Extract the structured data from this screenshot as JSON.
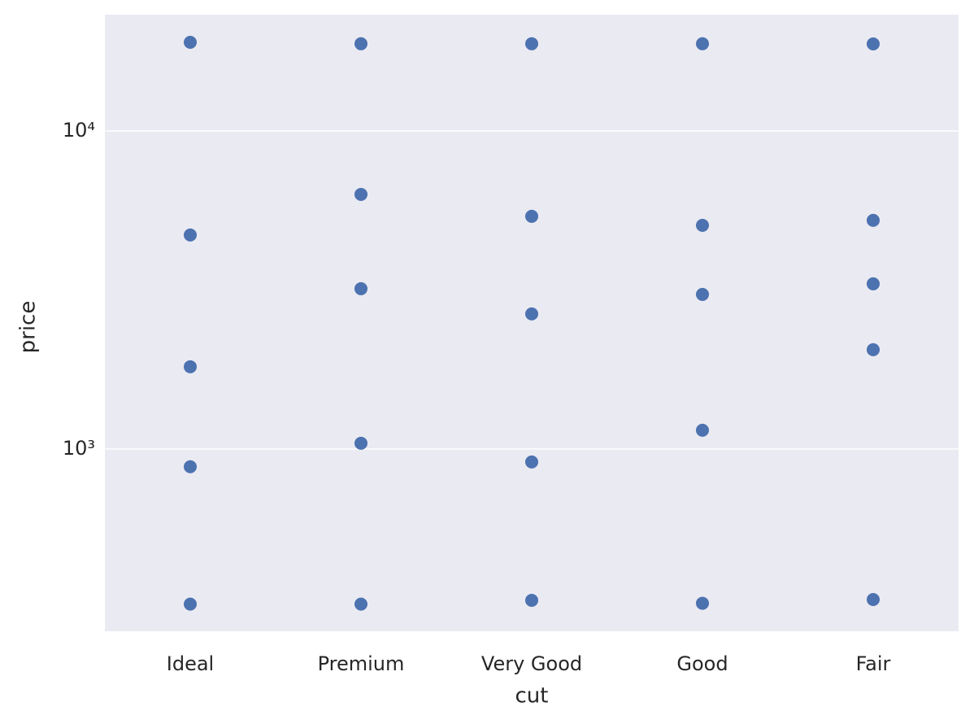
{
  "chart_data": {
    "type": "strip",
    "x_label": "cut",
    "y_label": "price",
    "categories": [
      "Ideal",
      "Premium",
      "Very Good",
      "Good",
      "Fair"
    ],
    "values": [
      [
        19000,
        4707,
        1813,
        879,
        325
      ],
      [
        18800,
        6317,
        3190,
        1042,
        325
      ],
      [
        18800,
        5389,
        2658,
        910,
        334
      ],
      [
        18800,
        5049,
        3061,
        1145,
        327
      ],
      [
        18780,
        5233,
        3305,
        2051,
        336
      ]
    ],
    "color": "#4c72b0",
    "y_scale": "log",
    "ylim": [
      267,
      23215
    ],
    "yticks": [
      {
        "value": 1000,
        "label": "10³"
      },
      {
        "value": 10000,
        "label": "10⁴"
      }
    ],
    "grid": true,
    "background": "#eaeaf2"
  }
}
